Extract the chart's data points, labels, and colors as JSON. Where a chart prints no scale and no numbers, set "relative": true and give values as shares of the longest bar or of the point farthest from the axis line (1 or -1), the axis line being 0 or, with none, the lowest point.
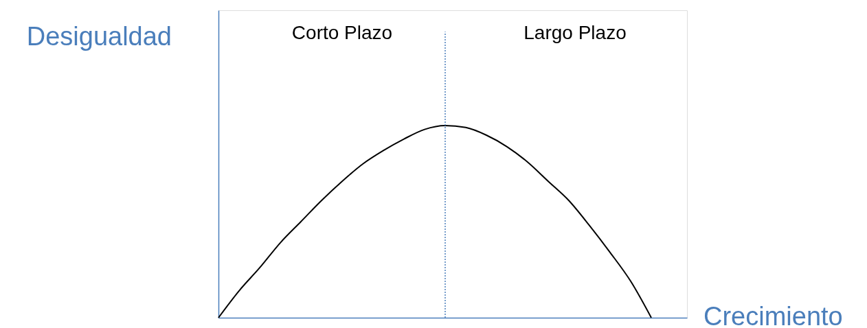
{
  "chart_data": {
    "type": "line",
    "relative": true,
    "xlabel": "Crecimiento",
    "ylabel": "Desigualdad",
    "categories": [
      null,
      null,
      null,
      null,
      null,
      null,
      null,
      null,
      null,
      null,
      null,
      null,
      null,
      null,
      null,
      null,
      null,
      null,
      null,
      null,
      null,
      null
    ],
    "series": [
      {
        "color": "#000000",
        "values": [
          0,
          0.14,
          0.26,
          0.39,
          0.5,
          0.61,
          0.71,
          0.8,
          0.87,
          0.93,
          0.98,
          1,
          0.99,
          0.95,
          0.89,
          0.81,
          0.71,
          0.61,
          0.48,
          0.34,
          0.19,
          0
        ]
      }
    ],
    "annotations": [
      "Corto Plazo",
      "Largo Plazo"
    ],
    "grid": false,
    "marker": "none",
    "line_style": "solid"
  }
}
